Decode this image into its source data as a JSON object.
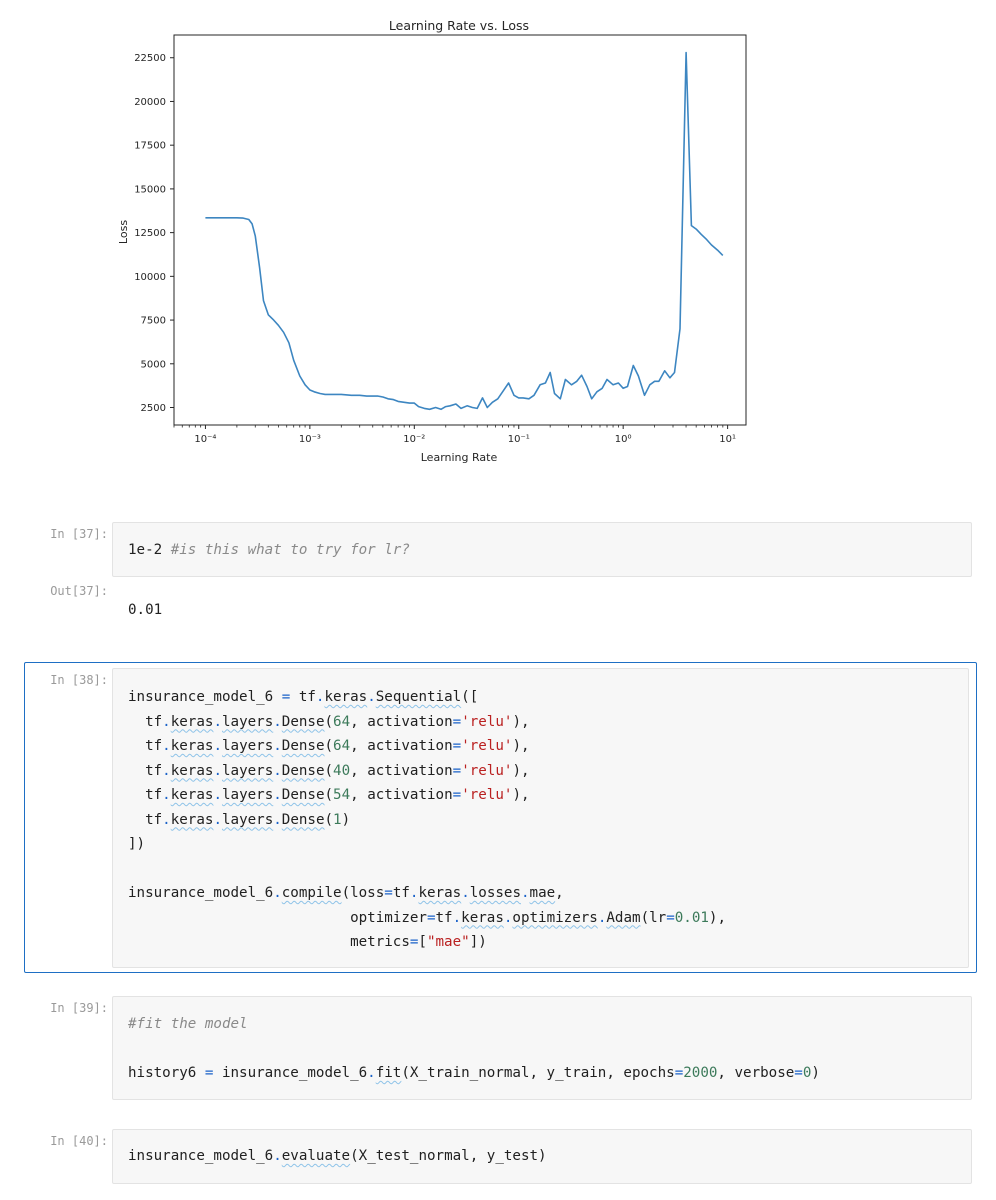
{
  "chart_data": {
    "type": "line",
    "title": "Learning Rate vs. Loss",
    "xlabel": "Learning Rate",
    "ylabel": "Loss",
    "xscale": "log",
    "xlim": [
      5e-05,
      15
    ],
    "ylim": [
      1500,
      23800
    ],
    "yticks": [
      2500,
      5000,
      7500,
      10000,
      12500,
      15000,
      17500,
      20000,
      22500
    ],
    "ytick_labels": [
      "2500",
      "5000",
      "7500",
      "10000",
      "12500",
      "15000",
      "17500",
      "20000",
      "22500"
    ],
    "xticks": [
      0.0001,
      0.001,
      0.01,
      0.1,
      1,
      10
    ],
    "xtick_labels": [
      "10⁻⁴",
      "10⁻³",
      "10⁻²",
      "10⁻¹",
      "10⁰",
      "10¹"
    ],
    "grid": false,
    "line_color": "#3d86c1",
    "series": [
      {
        "x": [
          0.0001,
          0.00013,
          0.00016,
          0.0002,
          0.00023,
          0.00026,
          0.00028,
          0.0003,
          0.00033,
          0.00036,
          0.0004,
          0.00045,
          0.0005,
          0.00056,
          0.00063,
          0.0007,
          0.0008,
          0.0009,
          0.001,
          0.0011,
          0.00125,
          0.0014,
          0.0016,
          0.0018,
          0.002,
          0.0025,
          0.003,
          0.0035,
          0.004,
          0.0045,
          0.005,
          0.0056,
          0.0063,
          0.007,
          0.008,
          0.009,
          0.01,
          0.011,
          0.0125,
          0.014,
          0.016,
          0.018,
          0.02,
          0.022,
          0.025,
          0.028,
          0.032,
          0.036,
          0.04,
          0.045,
          0.05,
          0.056,
          0.063,
          0.07,
          0.08,
          0.09,
          0.1,
          0.11,
          0.125,
          0.14,
          0.16,
          0.18,
          0.2,
          0.22,
          0.25,
          0.28,
          0.32,
          0.36,
          0.4,
          0.45,
          0.5,
          0.56,
          0.63,
          0.7,
          0.8,
          0.9,
          1.0,
          1.1,
          1.25,
          1.4,
          1.6,
          1.8,
          2.0,
          2.2,
          2.5,
          2.8,
          3.1,
          3.5,
          4.0,
          4.5,
          5.0,
          5.6,
          6.3,
          7.0,
          8.0,
          9.0
        ],
        "y": [
          13350,
          13350,
          13350,
          13350,
          13330,
          13250,
          13000,
          12300,
          10500,
          8600,
          7800,
          7500,
          7200,
          6800,
          6200,
          5200,
          4300,
          3800,
          3500,
          3400,
          3300,
          3250,
          3250,
          3250,
          3250,
          3200,
          3200,
          3150,
          3150,
          3150,
          3100,
          3000,
          2950,
          2850,
          2800,
          2750,
          2750,
          2550,
          2450,
          2400,
          2500,
          2400,
          2550,
          2600,
          2700,
          2450,
          2600,
          2500,
          2450,
          3050,
          2500,
          2800,
          3000,
          3400,
          3900,
          3200,
          3050,
          3050,
          3000,
          3200,
          3800,
          3900,
          4500,
          3300,
          3000,
          4100,
          3800,
          4000,
          4350,
          3700,
          3000,
          3400,
          3600,
          4100,
          3800,
          3900,
          3600,
          3700,
          4900,
          4300,
          3200,
          3800,
          4000,
          4000,
          4600,
          4200,
          4500,
          7000,
          22800,
          12900,
          12700,
          12400,
          12100,
          11800,
          11500,
          11200
        ]
      }
    ]
  },
  "cells": [
    {
      "prompt": "In [37]:",
      "lines": [
        [
          {
            "t": "1e-2 ",
            "c": ""
          },
          {
            "t": "#is this what to try for lr?",
            "c": "cm"
          }
        ]
      ],
      "output_prompt": "Out[37]:",
      "output": "0.01"
    },
    {
      "prompt": "In [38]:",
      "selected": true,
      "lines": [
        [
          {
            "t": "insurance_model_6 ",
            "c": ""
          },
          {
            "t": "=",
            "c": "op"
          },
          {
            "t": " tf",
            "c": ""
          },
          {
            "t": ".",
            "c": "op"
          },
          {
            "t": "keras",
            "c": "u"
          },
          {
            "t": ".",
            "c": "op"
          },
          {
            "t": "Sequential",
            "c": "u"
          },
          {
            "t": "([",
            "c": ""
          }
        ],
        [
          {
            "t": "  tf",
            "c": ""
          },
          {
            "t": ".",
            "c": "op"
          },
          {
            "t": "keras",
            "c": "u"
          },
          {
            "t": ".",
            "c": "op"
          },
          {
            "t": "layers",
            "c": "u"
          },
          {
            "t": ".",
            "c": "op"
          },
          {
            "t": "Dense",
            "c": "u"
          },
          {
            "t": "(",
            "c": ""
          },
          {
            "t": "64",
            "c": "num"
          },
          {
            "t": ", activation",
            "c": ""
          },
          {
            "t": "=",
            "c": "op"
          },
          {
            "t": "'relu'",
            "c": "str"
          },
          {
            "t": "),",
            "c": ""
          }
        ],
        [
          {
            "t": "  tf",
            "c": ""
          },
          {
            "t": ".",
            "c": "op"
          },
          {
            "t": "keras",
            "c": "u"
          },
          {
            "t": ".",
            "c": "op"
          },
          {
            "t": "layers",
            "c": "u"
          },
          {
            "t": ".",
            "c": "op"
          },
          {
            "t": "Dense",
            "c": "u"
          },
          {
            "t": "(",
            "c": ""
          },
          {
            "t": "64",
            "c": "num"
          },
          {
            "t": ", activation",
            "c": ""
          },
          {
            "t": "=",
            "c": "op"
          },
          {
            "t": "'relu'",
            "c": "str"
          },
          {
            "t": "),",
            "c": ""
          }
        ],
        [
          {
            "t": "  tf",
            "c": ""
          },
          {
            "t": ".",
            "c": "op"
          },
          {
            "t": "keras",
            "c": "u"
          },
          {
            "t": ".",
            "c": "op"
          },
          {
            "t": "layers",
            "c": "u"
          },
          {
            "t": ".",
            "c": "op"
          },
          {
            "t": "Dense",
            "c": "u"
          },
          {
            "t": "(",
            "c": ""
          },
          {
            "t": "40",
            "c": "num"
          },
          {
            "t": ", activation",
            "c": ""
          },
          {
            "t": "=",
            "c": "op"
          },
          {
            "t": "'relu'",
            "c": "str"
          },
          {
            "t": "),",
            "c": ""
          }
        ],
        [
          {
            "t": "  tf",
            "c": ""
          },
          {
            "t": ".",
            "c": "op"
          },
          {
            "t": "keras",
            "c": "u"
          },
          {
            "t": ".",
            "c": "op"
          },
          {
            "t": "layers",
            "c": "u"
          },
          {
            "t": ".",
            "c": "op"
          },
          {
            "t": "Dense",
            "c": "u"
          },
          {
            "t": "(",
            "c": ""
          },
          {
            "t": "54",
            "c": "num"
          },
          {
            "t": ", activation",
            "c": ""
          },
          {
            "t": "=",
            "c": "op"
          },
          {
            "t": "'relu'",
            "c": "str"
          },
          {
            "t": "),",
            "c": ""
          }
        ],
        [
          {
            "t": "  tf",
            "c": ""
          },
          {
            "t": ".",
            "c": "op"
          },
          {
            "t": "keras",
            "c": "u"
          },
          {
            "t": ".",
            "c": "op"
          },
          {
            "t": "layers",
            "c": "u"
          },
          {
            "t": ".",
            "c": "op"
          },
          {
            "t": "Dense",
            "c": "u"
          },
          {
            "t": "(",
            "c": ""
          },
          {
            "t": "1",
            "c": "num"
          },
          {
            "t": ")",
            "c": ""
          }
        ],
        [
          {
            "t": "])",
            "c": ""
          }
        ],
        [
          {
            "t": "",
            "c": ""
          }
        ],
        [
          {
            "t": "insurance_model_6",
            "c": ""
          },
          {
            "t": ".",
            "c": "op"
          },
          {
            "t": "compile",
            "c": "u"
          },
          {
            "t": "(loss",
            "c": ""
          },
          {
            "t": "=",
            "c": "op"
          },
          {
            "t": "tf",
            "c": ""
          },
          {
            "t": ".",
            "c": "op"
          },
          {
            "t": "keras",
            "c": "u"
          },
          {
            "t": ".",
            "c": "op"
          },
          {
            "t": "losses",
            "c": "u"
          },
          {
            "t": ".",
            "c": "op"
          },
          {
            "t": "mae",
            "c": "u"
          },
          {
            "t": ",",
            "c": ""
          }
        ],
        [
          {
            "t": "                          optimizer",
            "c": ""
          },
          {
            "t": "=",
            "c": "op"
          },
          {
            "t": "tf",
            "c": ""
          },
          {
            "t": ".",
            "c": "op"
          },
          {
            "t": "keras",
            "c": "u"
          },
          {
            "t": ".",
            "c": "op"
          },
          {
            "t": "optimizers",
            "c": "u"
          },
          {
            "t": ".",
            "c": "op"
          },
          {
            "t": "Adam",
            "c": "u"
          },
          {
            "t": "(lr",
            "c": ""
          },
          {
            "t": "=",
            "c": "op"
          },
          {
            "t": "0.01",
            "c": "num"
          },
          {
            "t": "),",
            "c": ""
          }
        ],
        [
          {
            "t": "                          metrics",
            "c": ""
          },
          {
            "t": "=",
            "c": "op"
          },
          {
            "t": "[",
            "c": ""
          },
          {
            "t": "\"mae\"",
            "c": "str"
          },
          {
            "t": "])",
            "c": ""
          }
        ]
      ]
    },
    {
      "prompt": "In [39]:",
      "lines": [
        [
          {
            "t": "#fit the model",
            "c": "cm"
          }
        ],
        [
          {
            "t": "",
            "c": ""
          }
        ],
        [
          {
            "t": "history6 ",
            "c": ""
          },
          {
            "t": "=",
            "c": "op"
          },
          {
            "t": " insurance_model_6",
            "c": ""
          },
          {
            "t": ".",
            "c": "op"
          },
          {
            "t": "fit",
            "c": "u"
          },
          {
            "t": "(X_train_normal, y_train, epochs",
            "c": ""
          },
          {
            "t": "=",
            "c": "op"
          },
          {
            "t": "2000",
            "c": "num"
          },
          {
            "t": ", verbose",
            "c": ""
          },
          {
            "t": "=",
            "c": "op"
          },
          {
            "t": "0",
            "c": "num"
          },
          {
            "t": ")",
            "c": ""
          }
        ]
      ]
    },
    {
      "prompt": "In [40]:",
      "lines": [
        [
          {
            "t": "insurance_model_6",
            "c": ""
          },
          {
            "t": ".",
            "c": "op"
          },
          {
            "t": "evaluate",
            "c": "u"
          },
          {
            "t": "(X_test_normal, y_test)",
            "c": ""
          }
        ]
      ]
    }
  ]
}
